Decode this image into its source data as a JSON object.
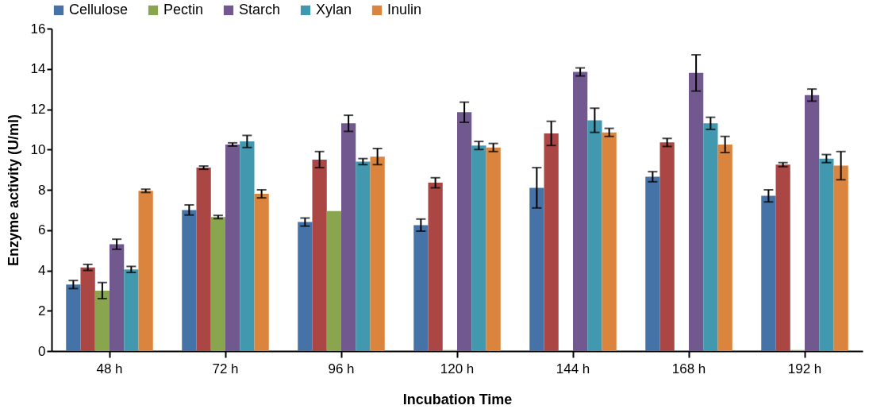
{
  "chart_data": {
    "type": "bar",
    "xlabel": "Incubation Time",
    "ylabel": "Enzyme activity (U/ml)",
    "categories": [
      "48 h",
      "72 h",
      "96 h",
      "120 h",
      "144 h",
      "168 h",
      "192 h"
    ],
    "series": [
      {
        "name": "Cellulose",
        "color": "#4572a7",
        "values": [
          3.3,
          7.0,
          6.4,
          6.25,
          8.1,
          8.65,
          7.7
        ],
        "errors": [
          0.2,
          0.25,
          0.2,
          0.3,
          1.0,
          0.25,
          0.3
        ]
      },
      {
        "color": "#aa4643",
        "values": [
          4.15,
          9.1,
          9.5,
          8.35,
          10.8,
          10.35,
          9.25
        ],
        "errors": [
          0.15,
          0.08,
          0.4,
          0.25,
          0.6,
          0.2,
          0.1
        ]
      },
      {
        "name": "Pectin",
        "color": "#89a54e",
        "values": [
          3.0,
          6.65,
          6.95,
          0.05,
          0.02,
          0.02,
          0.05
        ],
        "errors": [
          0.4,
          0.08,
          null,
          null,
          null,
          null,
          null
        ]
      },
      {
        "name": "Starch",
        "color": "#71588f",
        "values": [
          5.3,
          10.25,
          11.3,
          11.85,
          13.85,
          13.8,
          12.7
        ],
        "errors": [
          0.25,
          0.08,
          0.4,
          0.5,
          0.2,
          0.9,
          0.3
        ]
      },
      {
        "name": "Xylan",
        "color": "#4198af",
        "values": [
          4.05,
          10.4,
          9.4,
          10.2,
          11.45,
          11.3,
          9.55
        ],
        "errors": [
          0.15,
          0.3,
          0.15,
          0.2,
          0.6,
          0.3,
          0.2
        ]
      },
      {
        "name": "Inulin",
        "color": "#db843d",
        "values": [
          7.95,
          7.8,
          9.65,
          10.1,
          10.85,
          10.25,
          9.2
        ],
        "errors": [
          0.08,
          0.2,
          0.4,
          0.2,
          0.2,
          0.4,
          0.7
        ]
      }
    ],
    "ylim": [
      0,
      16
    ],
    "yticks": [
      0,
      2,
      4,
      6,
      8,
      10,
      12,
      14,
      16
    ],
    "grid": false,
    "legend": "top"
  }
}
